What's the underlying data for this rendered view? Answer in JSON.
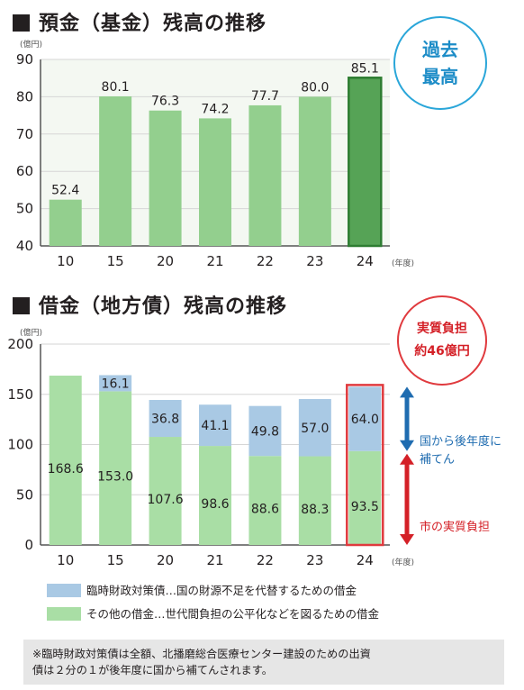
{
  "chart_data": [
    {
      "type": "bar",
      "title": "預金（基金）残高の推移",
      "unit": "(億円)",
      "x_unit": "(年度)",
      "categories": [
        "10",
        "15",
        "20",
        "21",
        "22",
        "23",
        "24"
      ],
      "values": [
        52.4,
        80.1,
        76.3,
        74.2,
        77.7,
        80.0,
        85.1
      ],
      "value_labels": [
        "52.4",
        "80.1",
        "76.3",
        "74.2",
        "77.7",
        "80.0",
        "85.1"
      ],
      "ylim": [
        40,
        90
      ],
      "yticks": [
        40,
        50,
        60,
        70,
        80,
        90
      ],
      "highlight_index": 6,
      "grid": true,
      "colors": {
        "bar": "#93cf8e",
        "highlight": "#56a356",
        "highlight_border": "#2e7d32"
      }
    },
    {
      "type": "bar",
      "stacked": true,
      "title": "借金（地方債）残高の推移",
      "unit": "(億円)",
      "x_unit": "(年度)",
      "categories": [
        "10",
        "15",
        "20",
        "21",
        "22",
        "23",
        "24"
      ],
      "series": [
        {
          "name": "その他の借金…世代間負担の公平化などを図るための借金",
          "values": [
            168.6,
            153.0,
            107.6,
            98.6,
            88.6,
            88.3,
            93.5
          ],
          "labels": [
            "168.6",
            "153.0",
            "107.6",
            "98.6",
            "88.6",
            "88.3",
            "93.5"
          ],
          "color": "#a9dea5"
        },
        {
          "name": "臨時財政対策債…国の財源不足を代替するための借金",
          "values": [
            0,
            16.1,
            36.8,
            41.1,
            49.8,
            57.0,
            64.0
          ],
          "labels": [
            "",
            "16.1",
            "36.8",
            "41.1",
            "49.8",
            "57.0",
            "64.0"
          ],
          "color": "#a9c9e4"
        }
      ],
      "ylim": [
        0,
        200
      ],
      "yticks": [
        0,
        50,
        100,
        150,
        200
      ],
      "highlight_index": 6,
      "grid": true,
      "colors": {
        "highlight_border": "#e03a3e"
      }
    }
  ],
  "titles": {
    "deposit": "預金（基金）残高の推移",
    "debt": "借金（地方債）残高の推移"
  },
  "badges": {
    "record_line1": "過去",
    "record_line2": "最高",
    "burden_line1": "実質負担",
    "burden_line2": "約46億円"
  },
  "annotations": {
    "compensation_line1": "国から後年度に",
    "compensation_line2": "補てん",
    "city_burden": "市の実質負担"
  },
  "legend": {
    "item1": "臨時財政対策債…国の財源不足を代替するための借金",
    "item2": "その他の借金…世代間負担の公平化などを図るための借金"
  },
  "note": {
    "line1": "※臨時財政対策債は全額、北播磨総合医療センター建設のための出資",
    "line2": "債は２分の１が後年度に国から補てんされます。"
  }
}
